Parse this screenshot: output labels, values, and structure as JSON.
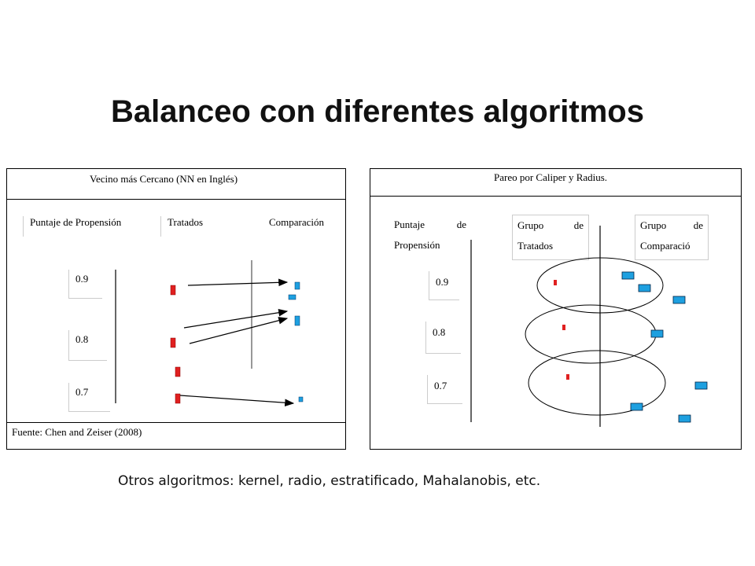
{
  "slide": {
    "title": "Balanceo con diferentes algoritmos",
    "footer": "Otros algoritmos: kernel, radio, estratificado, Mahalanobis, etc."
  },
  "left_panel": {
    "heading": "Vecino más Cercano (NN en Inglés)",
    "col_score": "Puntaje de Propensión",
    "col_treated": "Tratados",
    "col_comparison": "Comparación",
    "scores": [
      "0.9",
      "0.8",
      "0.7"
    ],
    "source": "Fuente:  Chen and Zeiser (2008)"
  },
  "right_panel": {
    "heading": "Pareo por Caliper y Radius.",
    "score_word1": "Puntaje",
    "score_word2": "de",
    "score_word3": "Propensión",
    "treated_word1": "Grupo",
    "treated_word2": "de",
    "treated_word3": "Tratados",
    "comparison_word1": "Grupo",
    "comparison_word2": "de",
    "comparison_word3": "Comparació",
    "scores": [
      "0.9",
      "0.8",
      "0.7"
    ]
  },
  "colors": {
    "treated": "#e02020",
    "comparison": "#1ea0e0"
  }
}
